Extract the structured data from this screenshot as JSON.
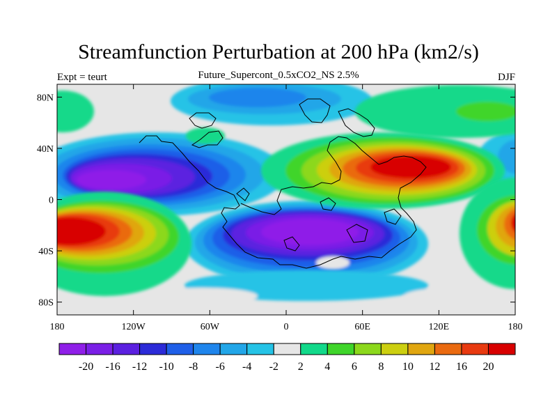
{
  "title": "Streamfunction Perturbation at 200 hPa (km2/s)",
  "subtitle_left": "Expt = teurt",
  "subtitle_center": "Future_Supercont_0.5xCO2_NS 2.5%",
  "subtitle_right": "DJF",
  "axes": {
    "x_ticks": [
      {
        "value": -180,
        "label": "180"
      },
      {
        "value": -120,
        "label": "120W"
      },
      {
        "value": -60,
        "label": "60W"
      },
      {
        "value": 0,
        "label": "0"
      },
      {
        "value": 60,
        "label": "60E"
      },
      {
        "value": 120,
        "label": "120E"
      },
      {
        "value": 180,
        "label": "180"
      }
    ],
    "y_ticks": [
      {
        "value": 80,
        "label": "80N"
      },
      {
        "value": 40,
        "label": "40N"
      },
      {
        "value": 0,
        "label": "0"
      },
      {
        "value": -40,
        "label": "40S"
      },
      {
        "value": -80,
        "label": "80S"
      }
    ],
    "lon_range": [
      -180,
      180
    ],
    "lat_range": [
      -90,
      90
    ]
  },
  "colorbar": {
    "labels": [
      "-20",
      "-16",
      "-12",
      "-10",
      "-8",
      "-6",
      "-4",
      "-2",
      "2",
      "4",
      "6",
      "8",
      "10",
      "12",
      "16",
      "20"
    ],
    "levels": [
      -20,
      -16,
      -12,
      -10,
      -8,
      -6,
      -4,
      -2,
      2,
      4,
      6,
      8,
      10,
      12,
      16,
      20
    ],
    "colors": [
      "#8f1fe8",
      "#7a1fe6",
      "#5b20e0",
      "#2c2bd8",
      "#1f5fe8",
      "#1f85ec",
      "#22a6e8",
      "#25c3e6",
      "#e6e6e6",
      "#12d98a",
      "#3fd52a",
      "#8cd81c",
      "#cccf10",
      "#e0a610",
      "#ea6a10",
      "#e83a10",
      "#d80000"
    ]
  },
  "chart_data": {
    "type": "heatmap",
    "title": "Streamfunction Perturbation at 200 hPa (km2/s)",
    "subtitle": "Future_Supercont_0.5xCO2_NS 2.5%",
    "season": "DJF",
    "experiment": "teurt",
    "xlim": [
      -180,
      180
    ],
    "ylim": [
      -90,
      90
    ],
    "levels": [
      -20,
      -16,
      -12,
      -10,
      -8,
      -6,
      -4,
      -2,
      2,
      4,
      6,
      8,
      10,
      12,
      16,
      20
    ],
    "features": [
      {
        "lon": -140,
        "lat": 22,
        "value": -20
      },
      {
        "lon": 0,
        "lat": -35,
        "value": -20
      },
      {
        "lon": -160,
        "lat": -35,
        "value": 20
      },
      {
        "lon": 100,
        "lat": 25,
        "value": 16
      },
      {
        "lon": 180,
        "lat": -30,
        "value": 16
      },
      {
        "lon": 40,
        "lat": 15,
        "value": 8
      },
      {
        "lon": 140,
        "lat": 70,
        "value": 6
      },
      {
        "lon": -130,
        "lat": -55,
        "value": 4
      }
    ]
  }
}
